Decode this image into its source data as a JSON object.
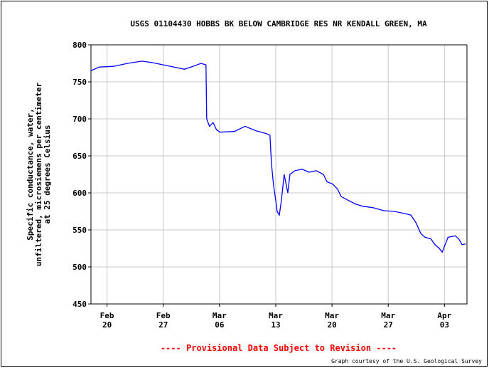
{
  "chart_data": {
    "type": "line",
    "title": "USGS 01104430 HOBBS BK BELOW CAMBRIDGE RES NR KENDALL GREEN, MA",
    "ylabel": [
      "Specific conductance, water,",
      "unfiltered, microsiemens per centimeter",
      "at 25 degrees Celsius"
    ],
    "note": "---- Provisional Data Subject to Revision ----",
    "credit": "Graph courtesy of the U.S. Geological Survey",
    "x": [
      -2.0,
      -0.97,
      0.8,
      2.57,
      4.34,
      5.67,
      7.0,
      8.33,
      9.65,
      10.98,
      11.69,
      12.31,
      12.4,
      12.75,
      13.2,
      13.64,
      14.08,
      15.85,
      17.18,
      18.51,
      19.84,
      20.28,
      20.46,
      20.73,
      21.0,
      21.17,
      21.44,
      21.7,
      22.05,
      22.5,
      22.76,
      23.38,
      24.27,
      25.15,
      26.04,
      26.93,
      27.37,
      28.08,
      28.7,
      29.14,
      30.03,
      30.91,
      31.8,
      33.13,
      34.46,
      35.78,
      37.11,
      37.82,
      38.44,
      39.06,
      39.59,
      40.3,
      40.83,
      41.36,
      41.71,
      42.0,
      42.44,
      43.33,
      43.77,
      44.2,
      44.64
    ],
    "series": [
      {
        "color": "#0000ff",
        "values": [
          765,
          770,
          771,
          775,
          778,
          776,
          773,
          770,
          767,
          772,
          775,
          773,
          700,
          690,
          695,
          685,
          682,
          683,
          690,
          684,
          680,
          678,
          640,
          610,
          590,
          575,
          570,
          590,
          625,
          600,
          625,
          630,
          632,
          628,
          630,
          625,
          615,
          612,
          605,
          595,
          590,
          585,
          582,
          580,
          576,
          575,
          572,
          570,
          560,
          545,
          540,
          538,
          530,
          525,
          520,
          528,
          540,
          542,
          538,
          530,
          531
        ]
      }
    ],
    "xlim": [
      -2.0,
      44.8
    ],
    "xticks": [
      {
        "value": 0,
        "label": "Feb 20"
      },
      {
        "value": 7,
        "label": "Feb 27"
      },
      {
        "value": 14,
        "label": "Mar 06"
      },
      {
        "value": 21,
        "label": "Mar 13"
      },
      {
        "value": 28,
        "label": "Mar 20"
      },
      {
        "value": 35,
        "label": "Mar 27"
      },
      {
        "value": 42,
        "label": "Apr 03"
      }
    ],
    "ylim": [
      450,
      800
    ],
    "yticks": [
      450,
      500,
      550,
      600,
      650,
      700,
      750,
      800
    ],
    "grid": true
  }
}
